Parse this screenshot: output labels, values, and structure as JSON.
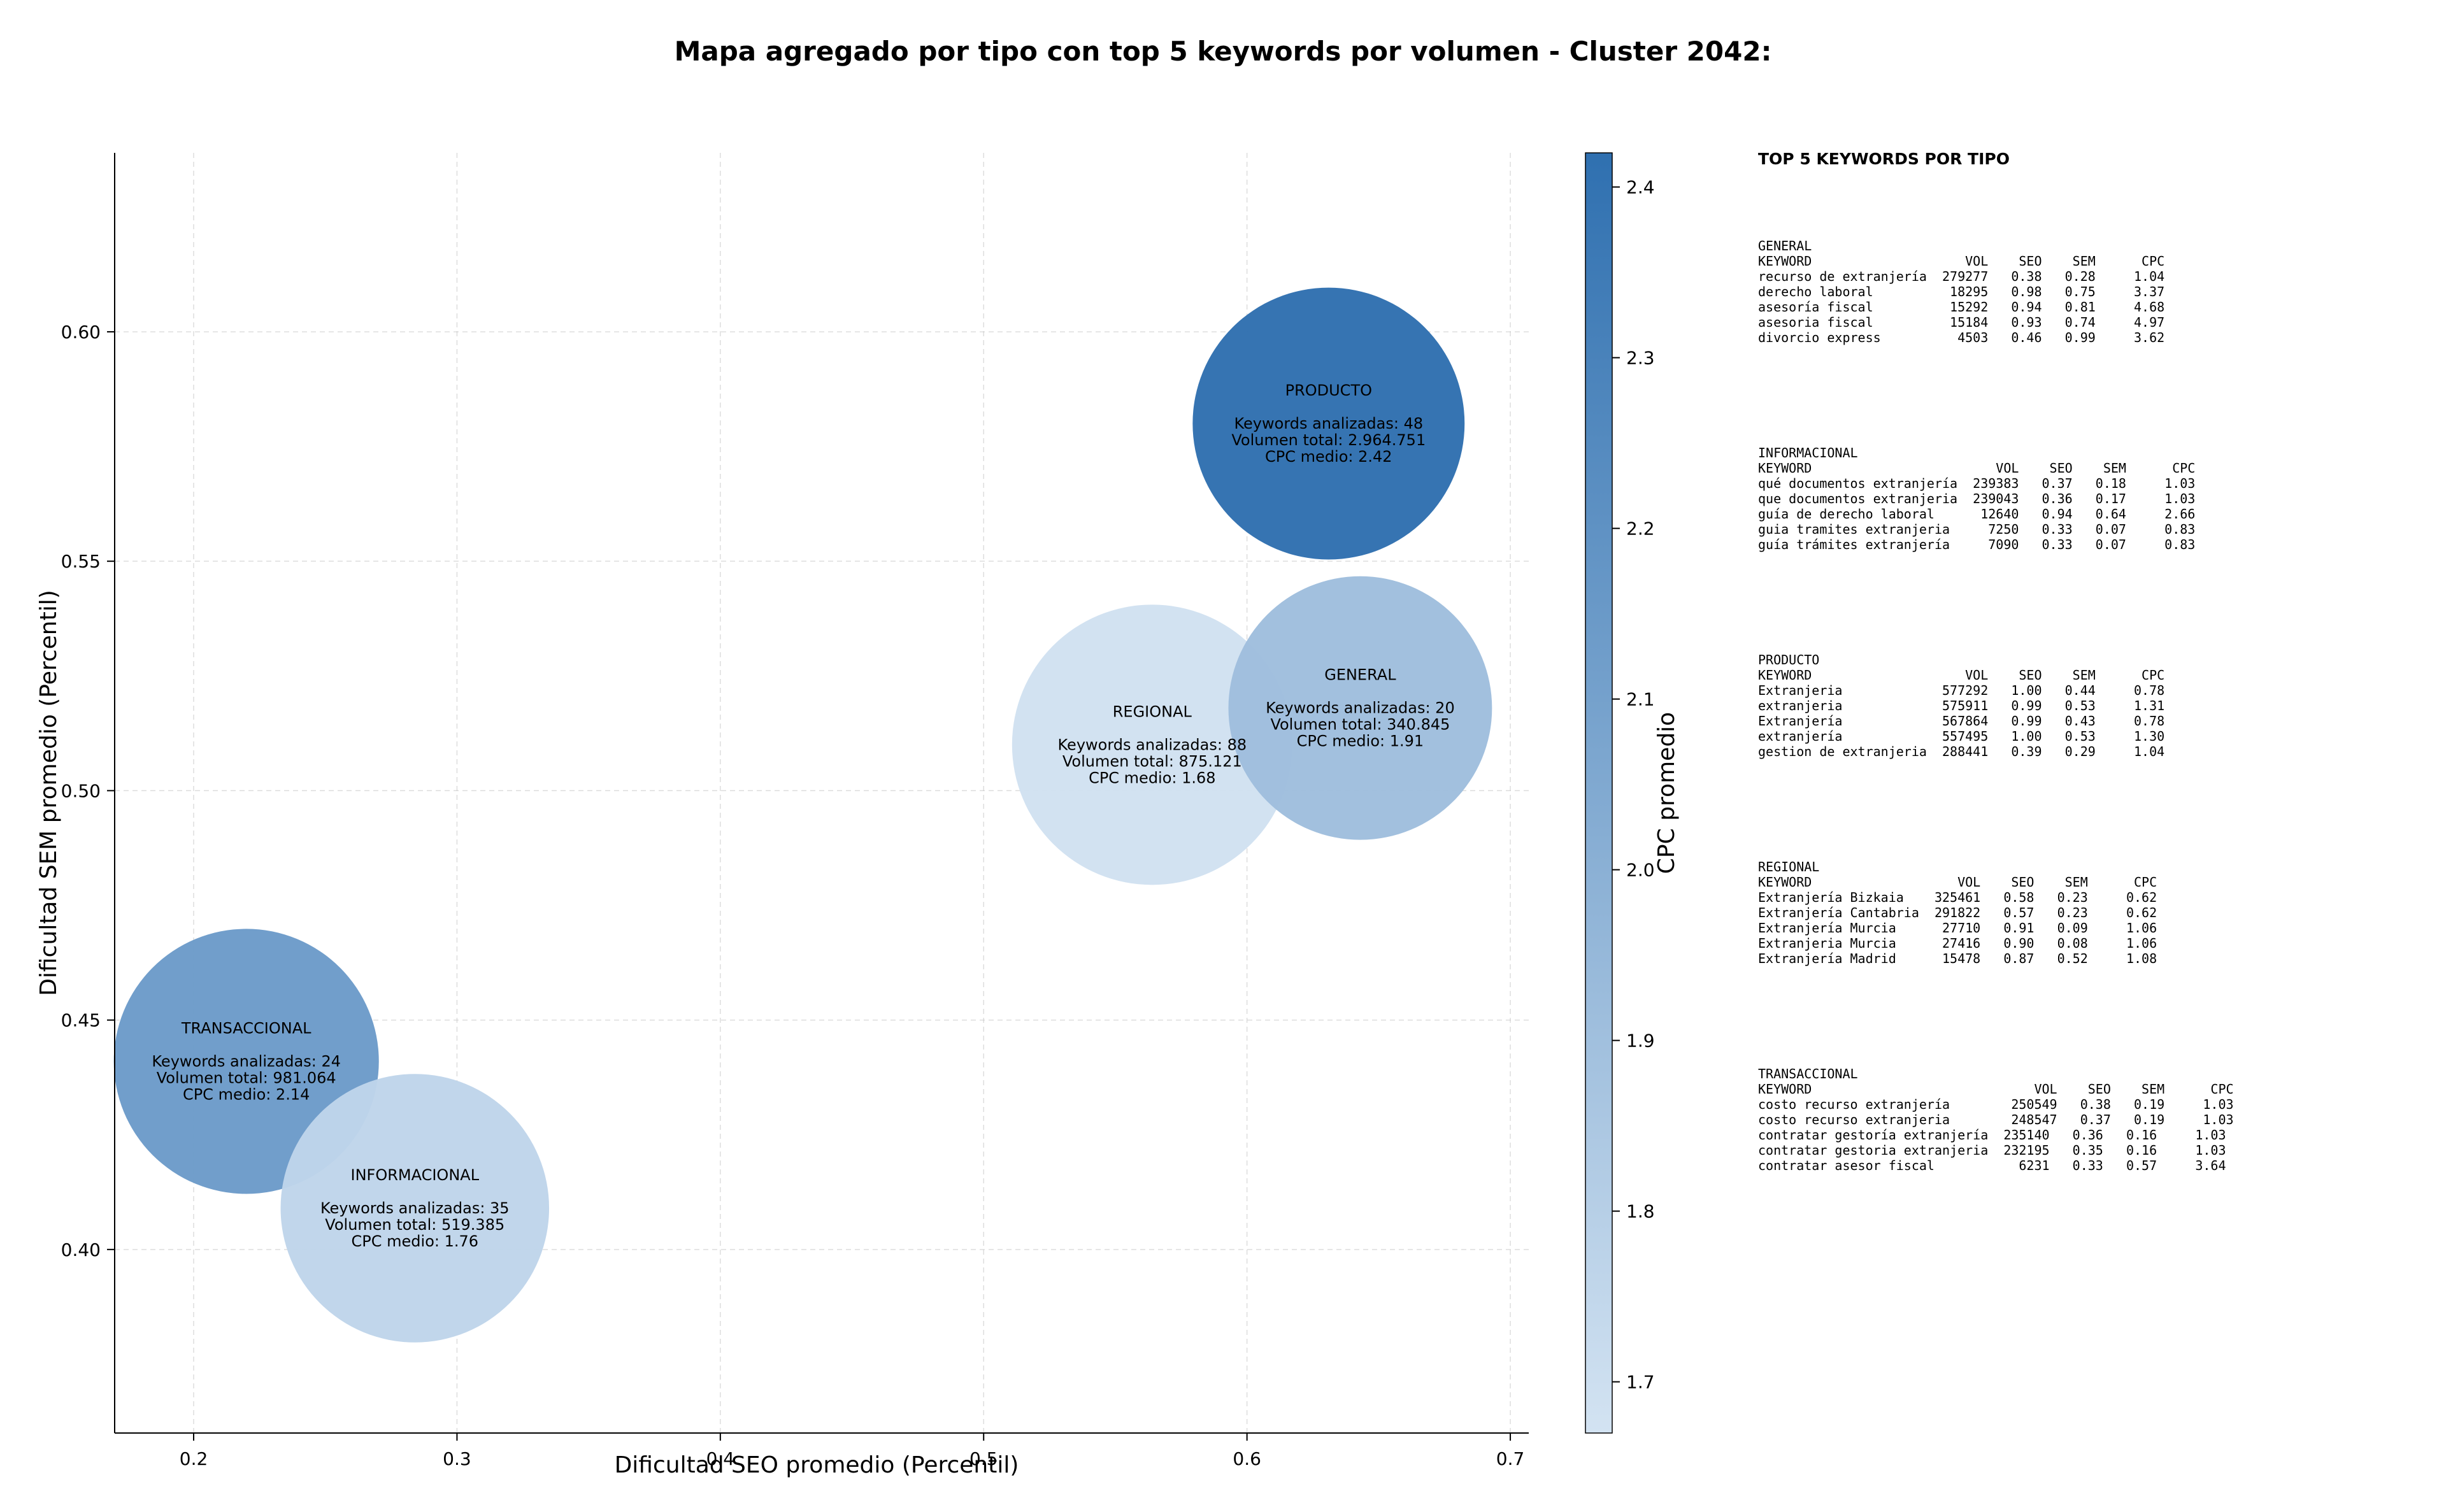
{
  "title": "Mapa agregado por tipo con top 5 keywords por volumen - Cluster 2042:",
  "chart_data": {
    "type": "scatter",
    "subtype": "bubble",
    "xlabel": "Dificultad SEO promedio (Percentil)",
    "ylabel": "Dificultad SEM promedio (Percentil)",
    "xlim": [
      0.17,
      0.707
    ],
    "ylim": [
      0.36,
      0.639
    ],
    "xticks": [
      0.2,
      0.3,
      0.4,
      0.5,
      0.6,
      0.7
    ],
    "xtick_labels": [
      "0.2",
      "0.3",
      "0.4",
      "0.5",
      "0.6",
      "0.7"
    ],
    "yticks": [
      0.4,
      0.45,
      0.5,
      0.55,
      0.6
    ],
    "ytick_labels": [
      "0.40",
      "0.45",
      "0.50",
      "0.55",
      "0.60"
    ],
    "grid": true,
    "colorbar": {
      "label": "CPC promedio",
      "range": [
        1.67,
        2.42
      ],
      "ticks": [
        1.7,
        1.8,
        1.9,
        2.0,
        2.1,
        2.2,
        2.3,
        2.4
      ],
      "tick_labels": [
        "1.7",
        "1.8",
        "1.9",
        "2.0",
        "2.1",
        "2.2",
        "2.3",
        "2.4"
      ],
      "colormap": "Blues",
      "color_low": "#d3e3f2",
      "color_high": "#2f70b0"
    },
    "points": [
      {
        "name": "PRODUCTO",
        "x": 0.631,
        "y": 0.58,
        "keywords": 48,
        "volume": 2964751,
        "cpc": 2.42,
        "label_lines": [
          "PRODUCTO",
          "",
          "Keywords analizadas: 48",
          "Volumen total: 2.964.751",
          "CPC medio: 2.42"
        ]
      },
      {
        "name": "REGIONAL",
        "x": 0.564,
        "y": 0.51,
        "keywords": 88,
        "volume": 875121,
        "cpc": 1.68,
        "label_lines": [
          "REGIONAL",
          "",
          "Keywords analizadas: 88",
          "Volumen total: 875.121",
          "CPC medio: 1.68"
        ]
      },
      {
        "name": "GENERAL",
        "x": 0.643,
        "y": 0.518,
        "keywords": 20,
        "volume": 340845,
        "cpc": 1.91,
        "label_lines": [
          "GENERAL",
          "",
          "Keywords analizadas: 20",
          "Volumen total: 340.845",
          "CPC medio: 1.91"
        ]
      },
      {
        "name": "TRANSACCIONAL",
        "x": 0.22,
        "y": 0.441,
        "keywords": 24,
        "volume": 981064,
        "cpc": 2.14,
        "label_lines": [
          "TRANSACCIONAL",
          "",
          "Keywords analizadas: 24",
          "Volumen total: 981.064",
          "CPC medio: 2.14"
        ]
      },
      {
        "name": "INFORMACIONAL",
        "x": 0.284,
        "y": 0.409,
        "keywords": 35,
        "volume": 519385,
        "cpc": 1.76,
        "label_lines": [
          "INFORMACIONAL",
          "",
          "Keywords analizadas: 35",
          "Volumen total: 519.385",
          "CPC medio: 1.76"
        ]
      }
    ]
  },
  "side_panel": {
    "title": "TOP 5 KEYWORDS POR TIPO",
    "blocks": [
      {
        "type": "GENERAL",
        "lines": [
          "GENERAL",
          "KEYWORD                    VOL    SEO    SEM      CPC",
          "recurso de extranjería  279277   0.38   0.28     1.04",
          "derecho laboral          18295   0.98   0.75     3.37",
          "asesoría fiscal          15292   0.94   0.81     4.68",
          "asesoria fiscal          15184   0.93   0.74     4.97",
          "divorcio express          4503   0.46   0.99     3.62"
        ]
      },
      {
        "type": "INFORMACIONAL",
        "lines": [
          "INFORMACIONAL",
          "KEYWORD                        VOL    SEO    SEM      CPC",
          "qué documentos extranjería  239383   0.37   0.18     1.03",
          "que documentos extranjeria  239043   0.36   0.17     1.03",
          "guía de derecho laboral      12640   0.94   0.64     2.66",
          "guia tramites extranjeria     7250   0.33   0.07     0.83",
          "guía trámites extranjería     7090   0.33   0.07     0.83"
        ]
      },
      {
        "type": "PRODUCTO",
        "lines": [
          "PRODUCTO",
          "KEYWORD                    VOL    SEO    SEM      CPC",
          "Extranjeria             577292   1.00   0.44     0.78",
          "extranjeria             575911   0.99   0.53     1.31",
          "Extranjería             567864   0.99   0.43     0.78",
          "extranjería             557495   1.00   0.53     1.30",
          "gestion de extranjeria  288441   0.39   0.29     1.04"
        ]
      },
      {
        "type": "REGIONAL",
        "lines": [
          "REGIONAL",
          "KEYWORD                   VOL    SEO    SEM      CPC",
          "Extranjería Bizkaia    325461   0.58   0.23     0.62",
          "Extranjería Cantabria  291822   0.57   0.23     0.62",
          "Extranjería Murcia      27710   0.91   0.09     1.06",
          "Extranjeria Murcia      27416   0.90   0.08     1.06",
          "Extranjería Madrid      15478   0.87   0.52     1.08"
        ]
      },
      {
        "type": "TRANSACCIONAL",
        "lines": [
          "TRANSACCIONAL",
          "KEYWORD                             VOL    SEO    SEM      CPC",
          "costo recurso extranjería        250549   0.38   0.19     1.03",
          "costo recurso extranjeria        248547   0.37   0.19     1.03",
          "contratar gestoría extranjería  235140   0.36   0.16     1.03",
          "contratar gestoria extranjeria  232195   0.35   0.16     1.03",
          "contratar asesor fiscal           6231   0.33   0.57     3.64"
        ]
      }
    ]
  }
}
